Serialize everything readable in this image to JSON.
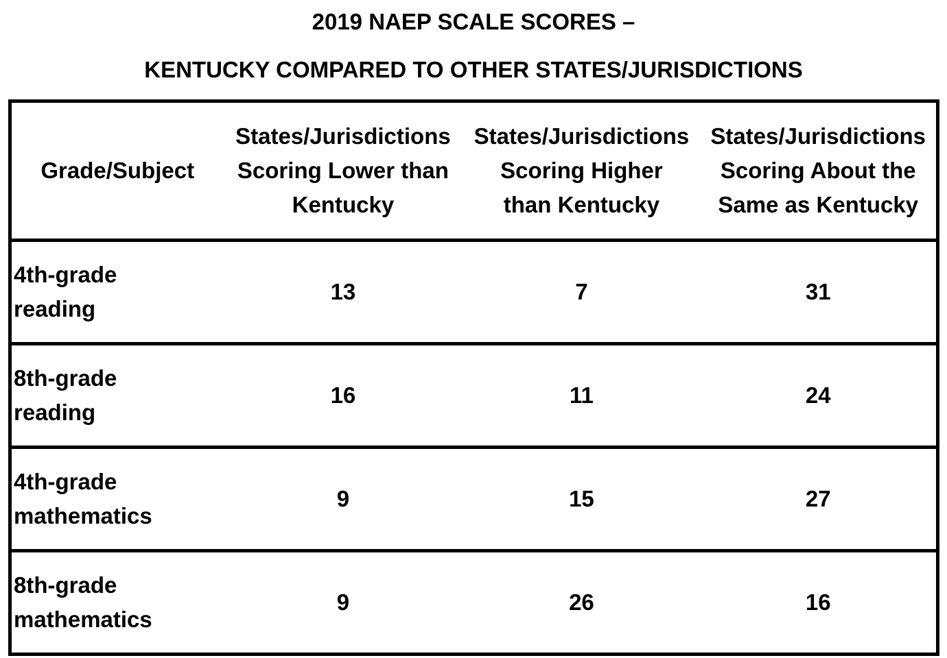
{
  "title": {
    "line1": "2019 NAEP SCALE SCORES –",
    "line2": "KENTUCKY COMPARED TO OTHER STATES/JURISDICTIONS"
  },
  "table": {
    "headers": [
      {
        "lines": [
          "Grade/Subject"
        ]
      },
      {
        "lines": [
          "States/Jurisdictions",
          "Scoring Lower than",
          "Kentucky"
        ]
      },
      {
        "lines": [
          "States/Jurisdictions",
          "Scoring Higher",
          "than Kentucky"
        ]
      },
      {
        "lines": [
          "States/Jurisdictions",
          "Scoring About the",
          "Same as Kentucky"
        ]
      }
    ],
    "rows": [
      {
        "subject": [
          "4th-grade",
          "reading"
        ],
        "lower": "13",
        "higher": "7",
        "same": "31"
      },
      {
        "subject": [
          "8th-grade",
          "reading"
        ],
        "lower": "16",
        "higher": "11",
        "same": "24"
      },
      {
        "subject": [
          "4th-grade",
          "mathematics"
        ],
        "lower": "9",
        "higher": "15",
        "same": "27"
      },
      {
        "subject": [
          "8th-grade",
          "mathematics"
        ],
        "lower": "9",
        "higher": "26",
        "same": "16"
      }
    ]
  }
}
